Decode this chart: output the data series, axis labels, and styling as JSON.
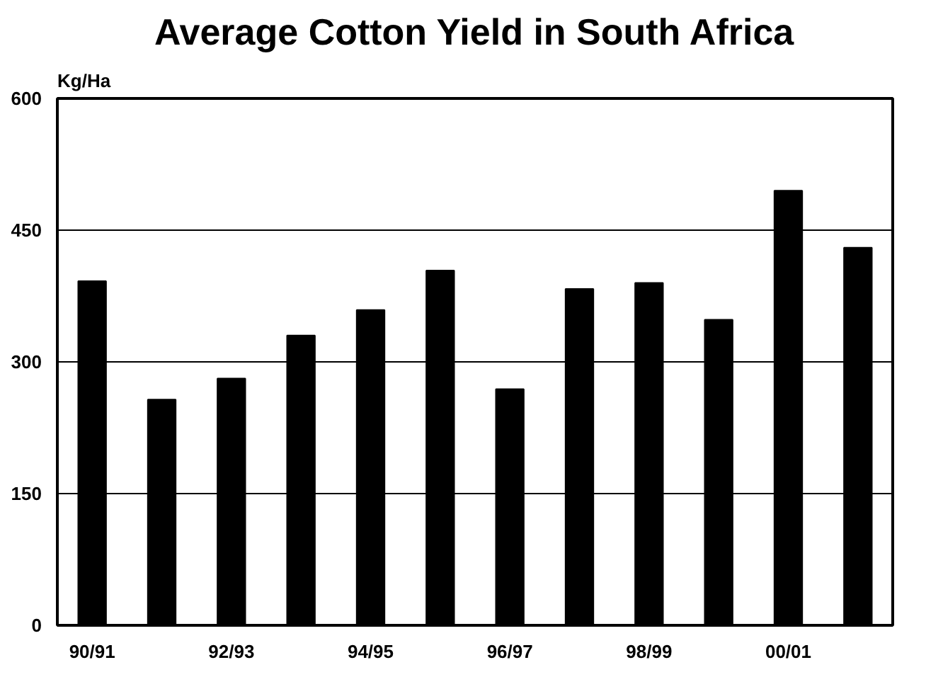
{
  "chart_data": {
    "type": "bar",
    "title": "Average Cotton Yield in South Africa",
    "ylabel": "Kg/Ha",
    "categories": [
      "90/91",
      null,
      "92/93",
      null,
      "94/95",
      null,
      "96/97",
      null,
      "98/99",
      null,
      "00/01",
      null
    ],
    "values": [
      392,
      257,
      281,
      330,
      359,
      404,
      269,
      383,
      390,
      348,
      495,
      430
    ],
    "color": "#000000",
    "ylim": [
      0,
      600
    ],
    "yticks": [
      0,
      150,
      300,
      450,
      600
    ],
    "grid": "y"
  }
}
